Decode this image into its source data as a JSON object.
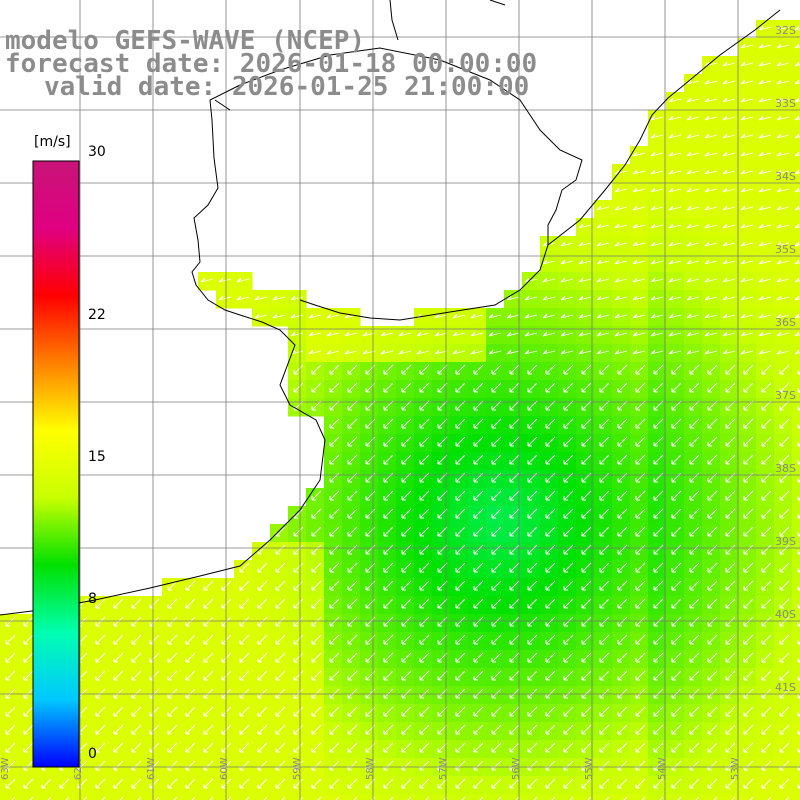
{
  "title": {
    "model": "modelo GEFS-WAVE (NCEP)",
    "forecast": "forecast date: 2026-01-18 00:00:00",
    "valid": "valid date: 2026-01-25 21:00:00"
  },
  "colorbar": {
    "units": "[m/s]",
    "ticks": [
      "30",
      "22",
      "15",
      "8",
      "0"
    ],
    "tick_values": [
      30,
      22,
      15,
      8,
      0
    ],
    "range": [
      0,
      30
    ],
    "colors": [
      "#0000ff",
      "#00c8ff",
      "#00ffb0",
      "#00e000",
      "#c8ff00",
      "#ffff00",
      "#ff8000",
      "#ff0000",
      "#e00080",
      "#c81478"
    ]
  },
  "lat_labels": [
    "32S",
    "33S",
    "34S",
    "35S",
    "36S",
    "37S",
    "38S",
    "39S",
    "40S",
    "41S"
  ],
  "lon_labels": [
    "63W",
    "62W",
    "61W",
    "60W",
    "59W",
    "58W",
    "57W",
    "56W",
    "55W",
    "54W",
    "53W",
    "52W",
    "51W"
  ],
  "field": {
    "variable": "wind speed",
    "arrow_direction": "from the northeast (pointing southwest)"
  }
}
